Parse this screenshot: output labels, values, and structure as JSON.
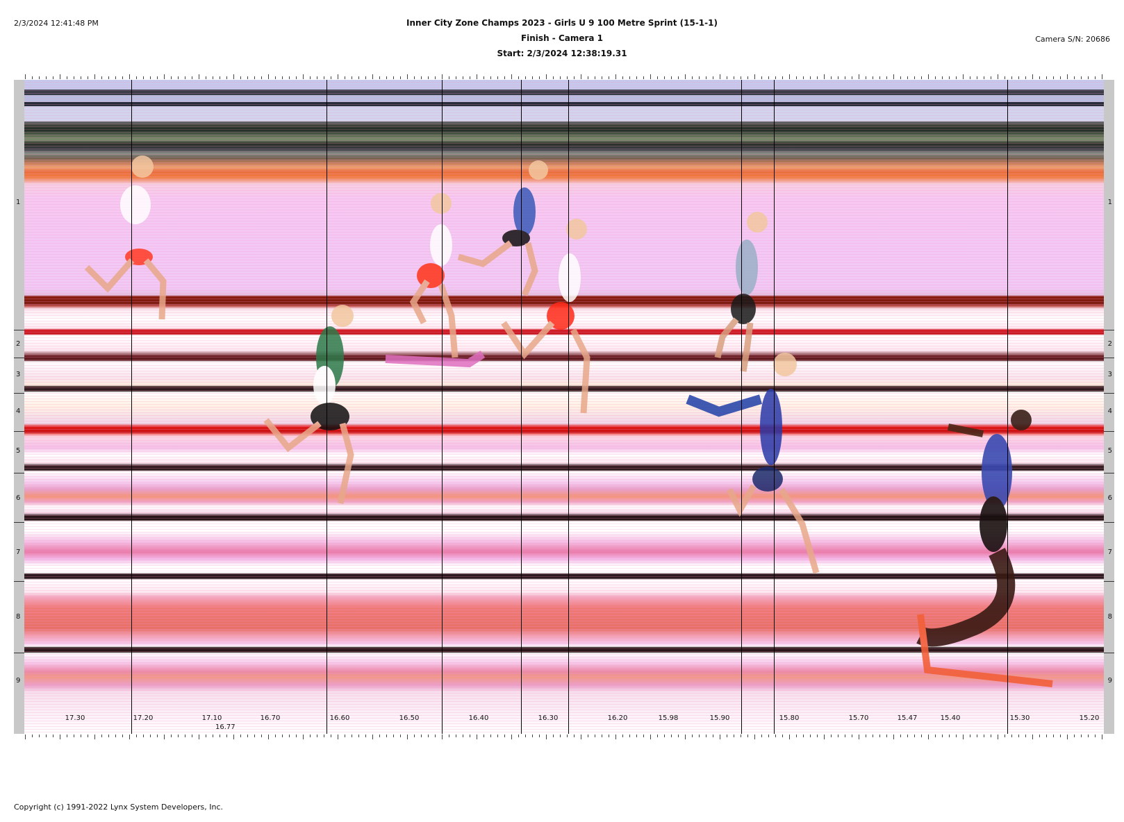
{
  "header": {
    "timestamp": "2/3/2024 12:41:48 PM",
    "title": "Inner City Zone Champs 2023 - Girls U 9 100 Metre Sprint (15-1-1)",
    "subtitle": "Finish - Camera 1",
    "start": "Start: 2/3/2024 12:38:19.31",
    "camera_sn": "Camera S/N: 20686"
  },
  "lanes": [
    "1",
    "2",
    "3",
    "4",
    "5",
    "6",
    "7",
    "8",
    "9"
  ],
  "time_axis": {
    "labels": [
      "17.30",
      "17.20",
      "17.10",
      "16.70",
      "16.60",
      "16.50",
      "16.40",
      "16.30",
      "16.20",
      "15.98",
      "15.90",
      "15.80",
      "15.70",
      "15.47",
      "15.40",
      "15.30",
      "15.20"
    ],
    "extra_label": "16.77"
  },
  "footer": {
    "copyright": "Copyright (c) 1991-2022 Lynx System Developers, Inc."
  }
}
